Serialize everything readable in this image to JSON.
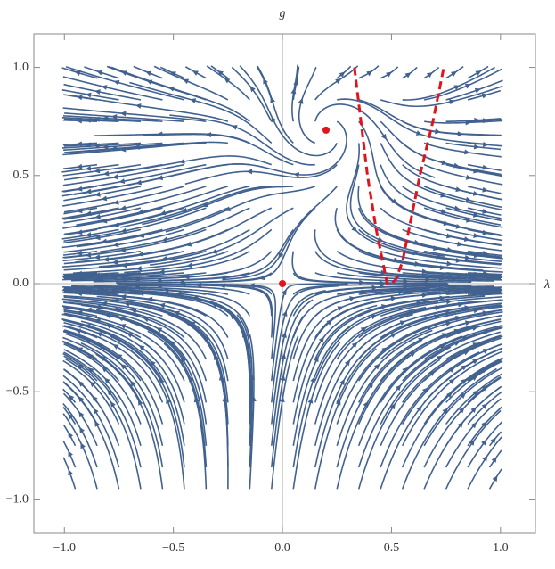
{
  "chart_data": {
    "type": "stream",
    "x_label": "λ",
    "y_label": "g",
    "xlim": [
      -1.14,
      1.16
    ],
    "ylim": [
      -1.155,
      1.155
    ],
    "xticks": [
      {
        "value": -1,
        "label": "−1.0"
      },
      {
        "value": -0.5,
        "label": "−0.5"
      },
      {
        "value": 0,
        "label": "0.0"
      },
      0.5,
      {
        "value": 1,
        "label": "1.0"
      }
    ],
    "yticks": [
      {
        "value": -1,
        "label": "−1.0"
      },
      {
        "value": -0.5,
        "label": "−0.5"
      },
      {
        "value": 0,
        "label": "0.0"
      },
      0.5,
      {
        "value": 1,
        "label": "1.0"
      }
    ],
    "stream_color": "#41618f",
    "fixed_points": {
      "color": "#e0141c",
      "x": [
        0,
        0.2
      ],
      "y": [
        0,
        0.71
      ]
    },
    "curve": {
      "color": "#e0141c",
      "dashed": true,
      "x": [
        0.33,
        0.36,
        0.39,
        0.43,
        0.46,
        0.48,
        0.5,
        0.52,
        0.55,
        0.58,
        0.63,
        0.69,
        0.74
      ],
      "y": [
        1.0,
        0.75,
        0.5,
        0.25,
        0.1,
        0.0,
        0.0,
        0.02,
        0.1,
        0.25,
        0.5,
        0.75,
        1.0
      ]
    }
  }
}
